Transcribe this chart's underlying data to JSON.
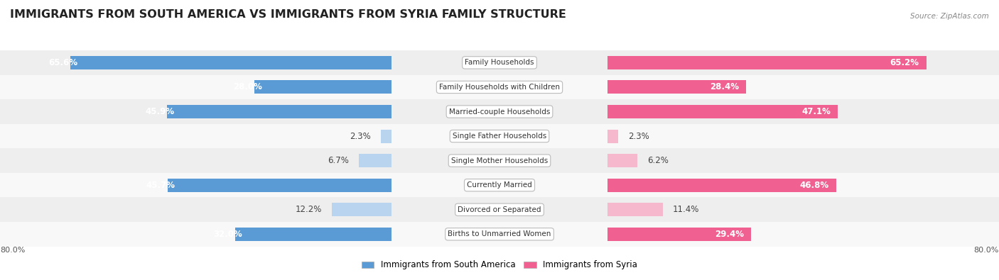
{
  "title": "IMMIGRANTS FROM SOUTH AMERICA VS IMMIGRANTS FROM SYRIA FAMILY STRUCTURE",
  "source": "Source: ZipAtlas.com",
  "categories": [
    "Family Households",
    "Family Households with Children",
    "Married-couple Households",
    "Single Father Households",
    "Single Mother Households",
    "Currently Married",
    "Divorced or Separated",
    "Births to Unmarried Women"
  ],
  "south_america": [
    65.6,
    28.0,
    45.9,
    2.3,
    6.7,
    45.7,
    12.2,
    32.0
  ],
  "syria": [
    65.2,
    28.4,
    47.1,
    2.3,
    6.2,
    46.8,
    11.4,
    29.4
  ],
  "x_max": 80.0,
  "blue_color_dark": "#5B9BD5",
  "blue_color_light": "#B8D4EF",
  "pink_color_dark": "#F06090",
  "pink_color_light": "#F5B8CD",
  "bg_row_color": "#EEEEEE",
  "bg_row_white": "#F8F8F8",
  "title_fontsize": 11.5,
  "bar_fontsize": 8.5,
  "legend_fontsize": 8.5,
  "axis_label_fontsize": 8,
  "large_threshold": 15.0
}
